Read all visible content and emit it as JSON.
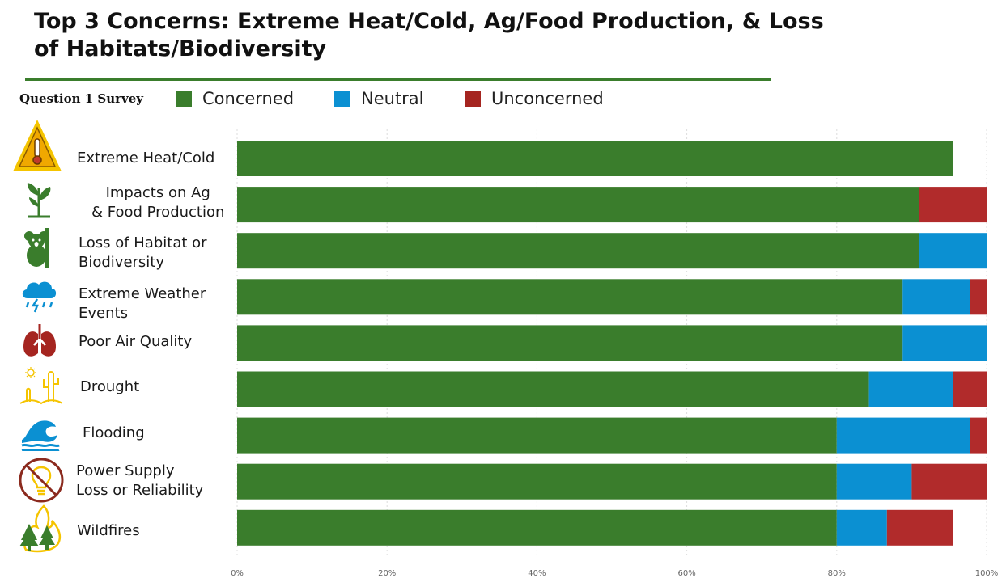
{
  "chart_data": {
    "type": "bar",
    "orientation": "horizontal",
    "stacked": true,
    "title": "Top 3 Concerns: Extreme Heat/Cold, Ag/Food Production, & Loss of Habitats/Biodiversity",
    "subtitle": "Question 1 Survey",
    "legend_position": "top",
    "grid": true,
    "xlim": [
      0,
      1
    ],
    "x_ticks": [
      "0%",
      "20%",
      "40%",
      "60%",
      "80%",
      "100%"
    ],
    "x_tick_values": [
      0,
      0.2,
      0.4,
      0.6,
      0.8,
      1.0
    ],
    "categories": [
      {
        "label": "Extreme Heat/Cold",
        "icon": "heat-warning-icon"
      },
      {
        "label": "Impacts on Ag\n& Food Production",
        "icon": "plant-sprout-icon"
      },
      {
        "label": "Loss of Habitat or\nBiodiversity",
        "icon": "koala-icon"
      },
      {
        "label": "Extreme Weather\nEvents",
        "icon": "storm-cloud-icon"
      },
      {
        "label": "Poor Air Quality",
        "icon": "lungs-icon"
      },
      {
        "label": "Drought",
        "icon": "desert-cactus-icon"
      },
      {
        "label": "Flooding",
        "icon": "wave-icon"
      },
      {
        "label": "Power Supply\nLoss or Reliability",
        "icon": "no-lightbulb-icon"
      },
      {
        "label": "Wildfires",
        "icon": "forest-fire-icon"
      }
    ],
    "series": [
      {
        "name": "Concerned",
        "color": "#3a7d2c",
        "values": [
          0.955,
          0.91,
          0.91,
          0.888,
          0.888,
          0.843,
          0.8,
          0.8,
          0.8
        ]
      },
      {
        "name": "Neutral",
        "color": "#0b90d2",
        "values": [
          0,
          0,
          0.09,
          0.09,
          0.112,
          0.112,
          0.178,
          0.1,
          0.067
        ]
      },
      {
        "name": "Unconcerned",
        "color": "#b12b2b",
        "values": [
          0,
          0.09,
          0,
          0.022,
          0,
          0.045,
          0.022,
          0.1,
          0.088
        ]
      }
    ]
  },
  "colors": {
    "title_rule": "#3a7d2c",
    "grid": "#dddddd",
    "tick_text": "#666666"
  }
}
